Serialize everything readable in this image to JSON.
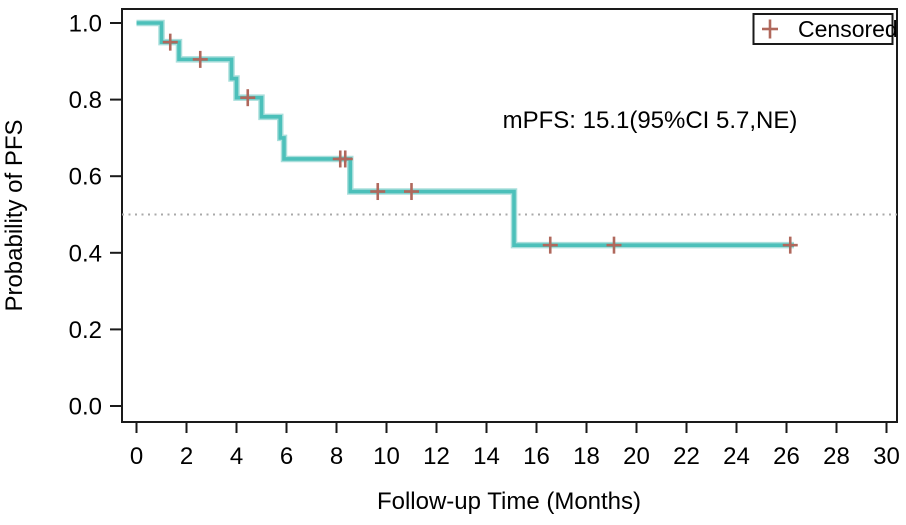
{
  "chart_data": {
    "type": "line",
    "subtype": "kaplan_meier_step",
    "title": "",
    "xlabel": "Follow-up Time (Months)",
    "ylabel": "Probability of PFS",
    "annotation": "mPFS: 15.1(95%CI 5.7,NE)",
    "median_pfs_months": 15.1,
    "ci_95": "5.7,NE",
    "legend": {
      "label": "Censored",
      "marker": "plus-icon",
      "position": "top-right"
    },
    "xlim": [
      0,
      30
    ],
    "ylim": [
      0.0,
      1.0
    ],
    "x_ticks": [
      0,
      2,
      4,
      6,
      8,
      10,
      12,
      14,
      16,
      18,
      20,
      22,
      24,
      26,
      28,
      30
    ],
    "y_ticks": [
      0.0,
      0.2,
      0.4,
      0.6,
      0.8,
      1.0
    ],
    "y_tick_labels": [
      "0.0",
      "0.2",
      "0.4",
      "0.6",
      "0.8",
      "1.0"
    ],
    "grid": false,
    "reference_line": {
      "y": 0.5,
      "style": "dotted",
      "color": "#a9a9a9"
    },
    "colors": {
      "curve": "#4cc0ba",
      "curve_halo": "#aadfdc",
      "censor": "#b0685c",
      "frame": "#1a1a1a",
      "text": "#000000"
    },
    "series": [
      {
        "name": "PFS",
        "color": "#4cc0ba",
        "steps": [
          {
            "t": 0.0,
            "s": 1.0
          },
          {
            "t": 1.0,
            "s": 0.95
          },
          {
            "t": 1.7,
            "s": 0.905
          },
          {
            "t": 3.8,
            "s": 0.855
          },
          {
            "t": 4.0,
            "s": 0.805
          },
          {
            "t": 5.0,
            "s": 0.755
          },
          {
            "t": 5.75,
            "s": 0.7
          },
          {
            "t": 5.9,
            "s": 0.645
          },
          {
            "t": 8.55,
            "s": 0.56
          },
          {
            "t": 15.1,
            "s": 0.42
          }
        ],
        "end_t": 26.3
      }
    ],
    "censored": {
      "color": "#b0685c",
      "points": [
        {
          "t": 1.35,
          "s": 0.95
        },
        {
          "t": 2.55,
          "s": 0.905
        },
        {
          "t": 4.45,
          "s": 0.805
        },
        {
          "t": 8.15,
          "s": 0.645
        },
        {
          "t": 8.35,
          "s": 0.645
        },
        {
          "t": 9.65,
          "s": 0.56
        },
        {
          "t": 11.0,
          "s": 0.56
        },
        {
          "t": 16.55,
          "s": 0.42
        },
        {
          "t": 19.1,
          "s": 0.42
        },
        {
          "t": 26.15,
          "s": 0.42
        }
      ]
    }
  }
}
